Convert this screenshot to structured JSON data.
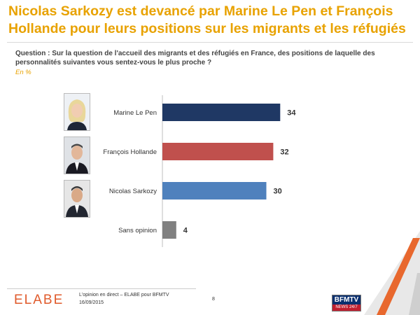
{
  "header": {
    "title": "Nicolas Sarkozy est devancé par Marine Le Pen et François Hollande pour leurs positions sur les migrants et les réfugiés",
    "question": "Question : Sur la question de l'accueil des migrants et des réfugiés en France, des positions de laquelle des personnalités suivantes vous sentez-vous le plus proche ?",
    "unit": "En %"
  },
  "chart_data": {
    "type": "bar",
    "orientation": "horizontal",
    "categories": [
      "Marine Le Pen",
      "François Hollande",
      "Nicolas Sarkozy",
      "Sans opinion"
    ],
    "values": [
      34,
      32,
      30,
      4
    ],
    "colors": [
      "#1f3864",
      "#c0504d",
      "#4f81bd",
      "#808080"
    ],
    "xlim": [
      0,
      40
    ],
    "grid": false,
    "legend": "none"
  },
  "footer": {
    "logo": "ELABE",
    "source": "L'opinion en direct – ELABE pour BFMTV",
    "date": "16/09/2015",
    "page": "8",
    "channel_logo_top": "BFMTV",
    "channel_logo_bottom": "NEWS 24/7"
  }
}
